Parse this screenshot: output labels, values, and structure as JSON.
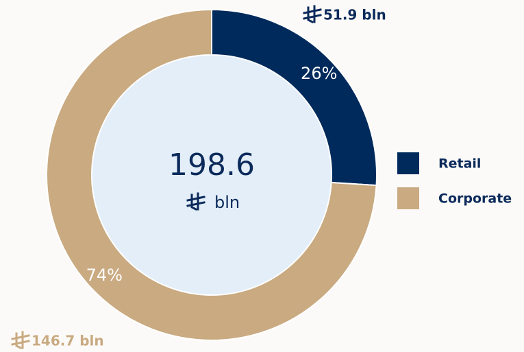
{
  "chart_data": {
    "type": "donut",
    "categories": [
      "Retail",
      "Corporate"
    ],
    "values": [
      26,
      74
    ],
    "value_labels": [
      "26%",
      "74%"
    ],
    "amount_labels": [
      "51.9 bln",
      "146.7 bln"
    ],
    "colors": [
      "#002a5c",
      "#c9aa81"
    ],
    "center_value": "198.6",
    "center_unit": "bln",
    "legend": "right"
  }
}
